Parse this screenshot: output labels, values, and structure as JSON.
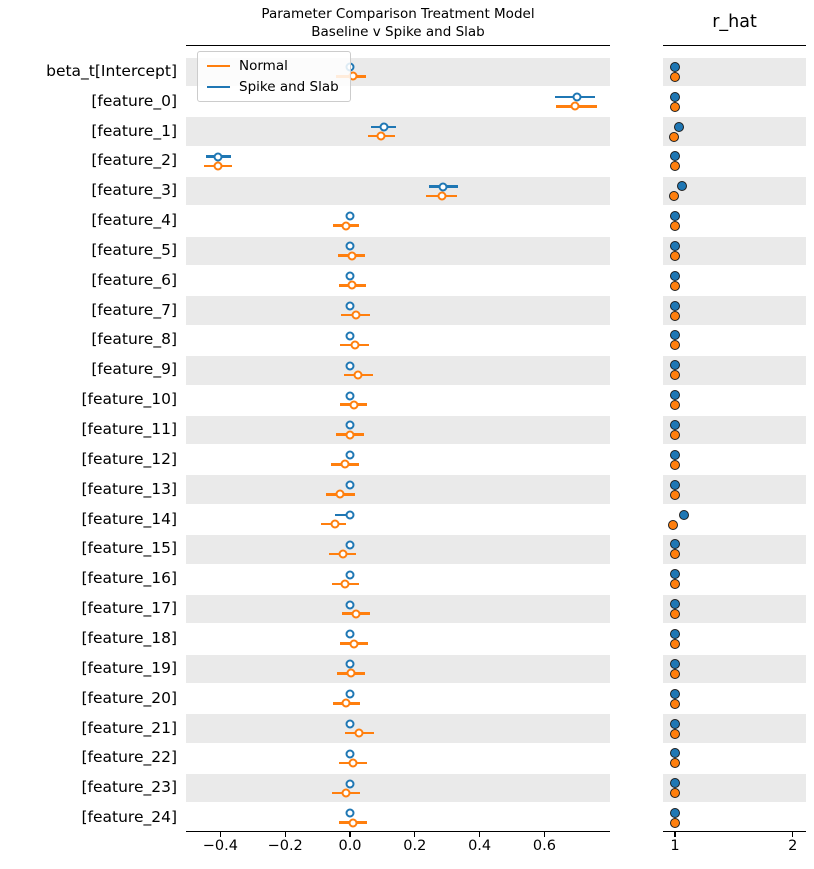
{
  "title": {
    "line1": "Parameter Comparison Treatment Model",
    "line2": "Baseline v Spike and Slab"
  },
  "rhat_title": "r_hat",
  "legend": {
    "items": [
      {
        "label": "Normal",
        "color": "#ff7f0e"
      },
      {
        "label": "Spike and Slab",
        "color": "#1f77b4"
      }
    ]
  },
  "colors": {
    "normal": "#ff7f0e",
    "spike_and_slab": "#1f77b4",
    "band": "#eaeaea",
    "spine": "#000000",
    "rhat_dot_edge": "#1f1f1f"
  },
  "chart_data": {
    "type": "forest",
    "parameters": [
      "beta_t[Intercept]",
      "[feature_0]",
      "[feature_1]",
      "[feature_2]",
      "[feature_3]",
      "[feature_4]",
      "[feature_5]",
      "[feature_6]",
      "[feature_7]",
      "[feature_8]",
      "[feature_9]",
      "[feature_10]",
      "[feature_11]",
      "[feature_12]",
      "[feature_13]",
      "[feature_14]",
      "[feature_15]",
      "[feature_16]",
      "[feature_17]",
      "[feature_18]",
      "[feature_19]",
      "[feature_20]",
      "[feature_21]",
      "[feature_22]",
      "[feature_23]",
      "[feature_24]"
    ],
    "xlabel": "",
    "xlim": [
      -0.506,
      0.802
    ],
    "xticks": [
      -0.4,
      -0.2,
      0.0,
      0.2,
      0.4,
      0.6
    ],
    "xtick_labels": [
      "−0.4",
      "−0.2",
      "0.0",
      "0.2",
      "0.4",
      "0.6"
    ],
    "rhat_xlim": [
      0.9,
      2.11
    ],
    "rhat_ticks": [
      1,
      2
    ],
    "rhat_tick_labels": [
      "1",
      "2"
    ],
    "series": [
      {
        "name": "Spike and Slab",
        "color": "#1f77b4",
        "values": [
          0.0,
          0.7,
          0.104,
          -0.406,
          0.287,
          0.0,
          0.0,
          0.0,
          0.0,
          0.0,
          0.0,
          0.0,
          0.0,
          0.0,
          0.0,
          0.0,
          0.0,
          0.0,
          0.0,
          0.0,
          0.0,
          0.0,
          0.0,
          0.0,
          0.0,
          0.0
        ],
        "lo": [
          0.0,
          0.633,
          0.065,
          -0.445,
          0.243,
          0.0,
          0.0,
          0.0,
          0.0,
          0.0,
          0.0,
          0.0,
          0.0,
          0.0,
          0.0,
          -0.045,
          0.0,
          0.0,
          0.0,
          0.0,
          0.0,
          0.0,
          0.0,
          0.0,
          0.0,
          0.0
        ],
        "hi": [
          0.0,
          0.756,
          0.142,
          -0.368,
          0.332,
          0.0,
          0.0,
          0.0,
          0.0,
          0.0,
          0.0,
          0.0,
          0.0,
          0.0,
          0.0,
          0.002,
          0.0,
          0.0,
          0.0,
          0.0,
          0.0,
          0.0,
          0.0,
          0.0,
          0.0,
          0.0
        ],
        "r_hat": [
          1.0,
          1.0,
          1.03,
          1.0,
          1.06,
          1.0,
          1.0,
          1.0,
          1.0,
          1.0,
          1.0,
          1.0,
          1.0,
          1.0,
          1.0,
          1.08,
          1.0,
          1.0,
          1.0,
          1.0,
          1.0,
          1.0,
          1.0,
          1.0,
          1.0,
          1.0
        ]
      },
      {
        "name": "Normal",
        "color": "#ff7f0e",
        "values": [
          0.008,
          0.695,
          0.096,
          -0.408,
          0.283,
          -0.012,
          0.005,
          0.007,
          0.018,
          0.014,
          0.026,
          0.011,
          0.0,
          -0.016,
          -0.03,
          -0.046,
          -0.023,
          -0.015,
          0.018,
          0.013,
          0.004,
          -0.011,
          0.029,
          0.01,
          -0.012,
          0.009
        ],
        "lo": [
          -0.042,
          0.636,
          0.056,
          -0.45,
          0.235,
          -0.052,
          -0.037,
          -0.035,
          -0.028,
          -0.03,
          -0.018,
          -0.032,
          -0.044,
          -0.06,
          -0.074,
          -0.09,
          -0.066,
          -0.057,
          -0.026,
          -0.03,
          -0.04,
          -0.053,
          -0.014,
          -0.033,
          -0.057,
          -0.034
        ],
        "hi": [
          0.048,
          0.761,
          0.139,
          -0.365,
          0.33,
          0.028,
          0.047,
          0.048,
          0.062,
          0.058,
          0.07,
          0.053,
          0.042,
          0.027,
          0.014,
          -0.012,
          0.02,
          0.028,
          0.063,
          0.056,
          0.047,
          0.031,
          0.073,
          0.053,
          0.032,
          0.051
        ],
        "r_hat": [
          1.0,
          1.0,
          0.995,
          1.0,
          0.99,
          1.0,
          1.0,
          1.0,
          1.0,
          1.0,
          1.0,
          1.0,
          1.0,
          1.0,
          1.0,
          0.98,
          1.0,
          1.0,
          1.0,
          1.0,
          1.0,
          1.0,
          1.0,
          1.0,
          1.0,
          1.0
        ]
      }
    ]
  }
}
